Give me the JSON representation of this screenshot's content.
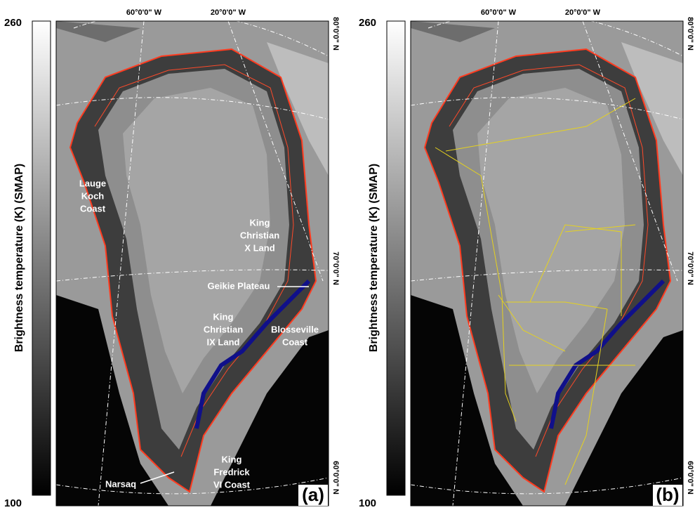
{
  "panels": [
    {
      "colorbar": {
        "max": "260",
        "min": "100",
        "label": "Brightness temperature (K) (SMAP)"
      },
      "longitudes": [
        "60°0'0\" W",
        "20°0'0\" W"
      ],
      "latitudes": [
        "80°0'0\" N",
        "70°0'0\" N",
        "60°0'0\" N"
      ],
      "places": [
        {
          "lines": [
            "Lauge",
            "Koch",
            "Coast"
          ]
        },
        {
          "lines": [
            "King",
            "Christian",
            "X Land"
          ]
        },
        {
          "lines": [
            "Geikie Plateau"
          ]
        },
        {
          "lines": [
            "King",
            "Christian",
            "IX Land"
          ]
        },
        {
          "lines": [
            "Blosseville",
            "Coast"
          ]
        },
        {
          "lines": [
            "King",
            "Fredrick",
            "VI Coast"
          ]
        },
        {
          "lines": [
            "Narsaq"
          ]
        }
      ],
      "panel_label": "(a)"
    },
    {
      "colorbar": {
        "max": "260",
        "min": "100",
        "label": "Brightness temperature (K) (SMAP)"
      },
      "longitudes": [
        "60°0'0\" W",
        "20°0'0\" W"
      ],
      "latitudes": [
        "80°0'0\" N",
        "70°0'0\" N",
        "60°0'0\" N"
      ],
      "places": [],
      "panel_label": "(b)"
    }
  ]
}
